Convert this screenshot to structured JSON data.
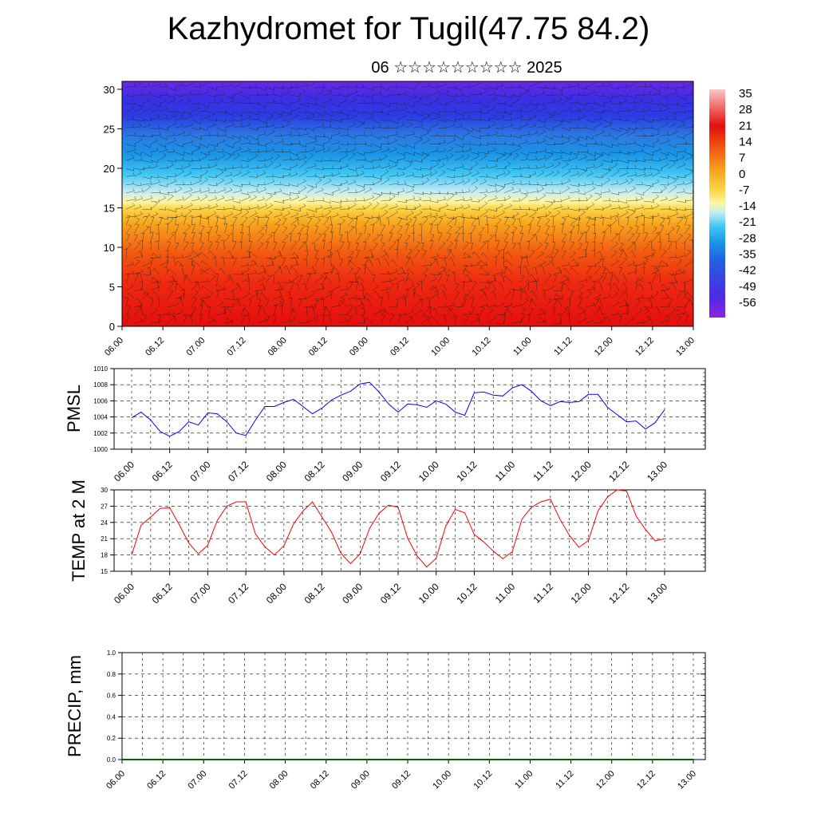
{
  "title": "Kazhydromet for Tugil(47.75 84.2)",
  "subtitle": "06 ☆☆☆☆☆☆☆☆☆ 2025",
  "colors": {
    "pmsl_line": "#0000ff",
    "temp_line": "#ff0000",
    "precip_line": "#006400",
    "axis": "#000000",
    "grid": "#000000"
  },
  "chart_data": [
    {
      "id": "crosssection",
      "type": "heatmap",
      "title": "",
      "xlabel": "",
      "ylabel": "",
      "x_ticks": [
        "06.00",
        "06.12",
        "07.00",
        "07.12",
        "08.00",
        "08.12",
        "09.00",
        "09.12",
        "10.00",
        "10.12",
        "11.00",
        "11.12",
        "12.00",
        "12.12",
        "13.00"
      ],
      "ylim": [
        0,
        31
      ],
      "y_ticks": [
        0,
        5,
        10,
        15,
        20,
        25,
        30
      ],
      "colorbar_labels": [
        "35",
        "28",
        "21",
        "14",
        "7",
        "0",
        "-7",
        "-14",
        "-21",
        "-28",
        "-35",
        "-42",
        "-49",
        "-56"
      ],
      "colorbar_colors": [
        "#f7b7b7",
        "#f06868",
        "#e8100f",
        "#ee3a0f",
        "#f4700f",
        "#f8a51e",
        "#fbd545",
        "#fbf7a8",
        "#c4ecf4",
        "#43c7f3",
        "#1996e6",
        "#1f5be2",
        "#3a30e6",
        "#6b22e3",
        "#8b22e3"
      ],
      "description_levels": {
        "surface_to_top_gradient": [
          35,
          28,
          21,
          14,
          7,
          0,
          -7,
          -14,
          -21,
          -28,
          -35,
          -42,
          -49,
          -56
        ]
      }
    },
    {
      "id": "pmsl",
      "type": "line",
      "ylabel": "PMSL",
      "ylim": [
        1000,
        1010
      ],
      "y_ticks": [
        1000,
        1002,
        1004,
        1006,
        1008,
        1010
      ],
      "x_ticks": [
        "06.00",
        "06.12",
        "07.00",
        "07.12",
        "08.00",
        "08.12",
        "09.00",
        "09.12",
        "10.00",
        "10.12",
        "11.00",
        "11.12",
        "12.00",
        "12.12",
        "13.00"
      ],
      "x": [
        0,
        3,
        6,
        9,
        12,
        15,
        18,
        21,
        24,
        27,
        30,
        33,
        36,
        39,
        42,
        45,
        48,
        51,
        54,
        57,
        60,
        63,
        66,
        69,
        72,
        75,
        78,
        81,
        84,
        87,
        90,
        93,
        96,
        99,
        102,
        105,
        108,
        111,
        114,
        117,
        120,
        123,
        126,
        129,
        132,
        135,
        138,
        141,
        144,
        147,
        150,
        153,
        156,
        159,
        162,
        165,
        168
      ],
      "series": [
        {
          "name": "",
          "values": [
            1003.9,
            1004.6,
            1003.6,
            1002.2,
            1001.6,
            1002.2,
            1003.4,
            1003.0,
            1004.5,
            1004.4,
            1003.4,
            1002.0,
            1001.7,
            1003.6,
            1005.3,
            1005.3,
            1005.8,
            1006.2,
            1005.3,
            1004.4,
            1005.1,
            1006.1,
            1006.7,
            1007.2,
            1008.1,
            1008.3,
            1007.1,
            1005.6,
            1004.6,
            1005.6,
            1005.5,
            1005.2,
            1006.0,
            1005.6,
            1004.6,
            1004.2,
            1007.0,
            1007.1,
            1006.7,
            1006.6,
            1007.6,
            1008.0,
            1007.2,
            1006.0,
            1005.4,
            1005.9,
            1005.8,
            1005.9,
            1006.8,
            1006.8,
            1005.2,
            1004.3,
            1003.4,
            1003.5,
            1002.5,
            1003.3,
            1004.9
          ]
        }
      ]
    },
    {
      "id": "temp",
      "type": "line",
      "ylabel": "TEMP at 2 M",
      "ylim": [
        15,
        30
      ],
      "y_ticks": [
        15,
        18,
        21,
        24,
        27,
        30
      ],
      "x_ticks": [
        "06.00",
        "06.12",
        "07.00",
        "07.12",
        "08.00",
        "08.12",
        "09.00",
        "09.12",
        "10.00",
        "10.12",
        "11.00",
        "11.12",
        "12.00",
        "12.12",
        "13.00"
      ],
      "x": [
        0,
        3,
        6,
        9,
        12,
        15,
        18,
        21,
        24,
        27,
        30,
        33,
        36,
        39,
        42,
        45,
        48,
        51,
        54,
        57,
        60,
        63,
        66,
        69,
        72,
        75,
        78,
        81,
        84,
        87,
        90,
        93,
        96,
        99,
        102,
        105,
        108,
        111,
        114,
        117,
        120,
        123,
        126,
        129,
        132,
        135,
        138,
        141,
        144,
        147,
        150,
        153,
        156,
        159,
        162,
        165,
        168
      ],
      "series": [
        {
          "name": "",
          "values": [
            18.0,
            23.5,
            25.0,
            26.6,
            26.7,
            23.6,
            20.2,
            18.2,
            19.8,
            24.4,
            27.0,
            27.8,
            27.8,
            21.9,
            19.5,
            18.0,
            19.7,
            23.7,
            26.1,
            27.8,
            25.0,
            22.2,
            18.3,
            16.4,
            18.2,
            22.9,
            25.7,
            27.2,
            26.8,
            21.1,
            17.8,
            15.8,
            17.4,
            23.3,
            26.4,
            25.8,
            21.8,
            20.4,
            18.7,
            17.3,
            18.6,
            24.6,
            26.8,
            27.8,
            28.3,
            24.6,
            21.6,
            19.4,
            20.7,
            26.1,
            28.7,
            30.0,
            29.8,
            25.2,
            22.7,
            20.6,
            21.0
          ]
        }
      ]
    },
    {
      "id": "precip",
      "type": "line",
      "ylabel": "PRECIP, mm",
      "ylim": [
        0.0,
        1.0
      ],
      "y_ticks": [
        "0.0",
        "0.2",
        "0.4",
        "0.6",
        "0.8",
        "1.0"
      ],
      "x_ticks": [
        "06.00",
        "06.12",
        "07.00",
        "07.12",
        "08.00",
        "08.12",
        "09.00",
        "09.12",
        "10.00",
        "10.12",
        "11.00",
        "11.12",
        "12.00",
        "12.12",
        "13.00"
      ],
      "x": [
        0,
        168
      ],
      "series": [
        {
          "name": "",
          "values": [
            0,
            0
          ]
        }
      ]
    }
  ]
}
